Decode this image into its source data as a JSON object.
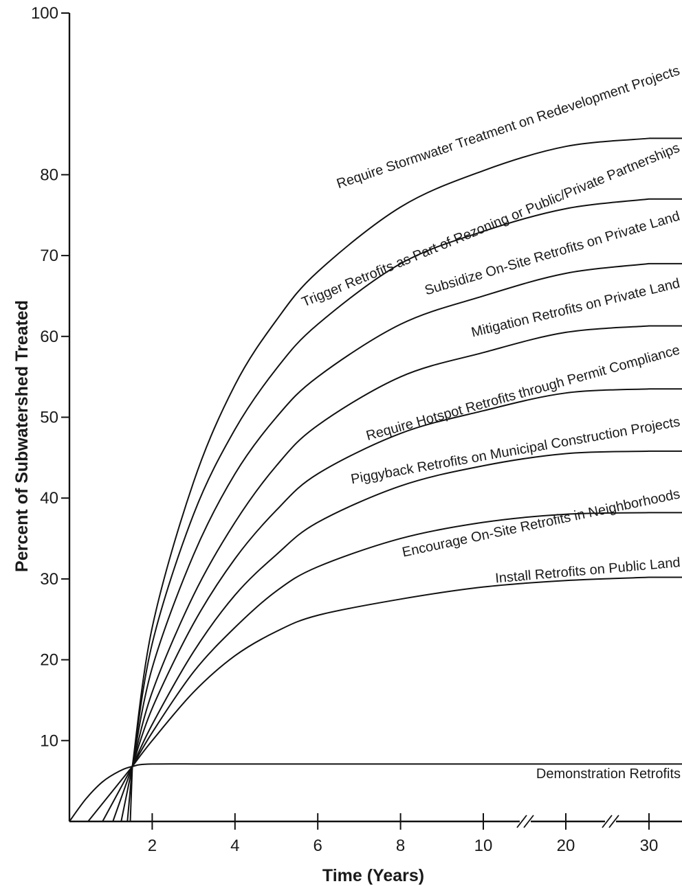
{
  "chart_data": {
    "type": "line",
    "title": "",
    "xlabel": "Time (Years)",
    "ylabel": "Percent of Subwatershed Treated",
    "ylim": [
      0,
      100
    ],
    "grid": false,
    "legend": "labels placed along curves",
    "y_ticks": [
      10,
      20,
      30,
      40,
      50,
      60,
      70,
      80,
      100
    ],
    "x_ticks": [
      2,
      4,
      6,
      8,
      10,
      20,
      30
    ],
    "x_axis_breaks": "between 10 and 20, and between 20 and 30",
    "series": [
      {
        "name": "Require Stormwater Treatment on Redevelopment Projects",
        "x": [
          1.52,
          2,
          3,
          4,
          5,
          6,
          8,
          10,
          20,
          30
        ],
        "y": [
          6.8,
          24.0,
          42.0,
          54.0,
          62.0,
          68.0,
          76.0,
          80.5,
          83.5,
          84.5
        ]
      },
      {
        "name": "Trigger Retrofits as Part of Rezoning or Public/Private Partnerships",
        "x": [
          1.52,
          2,
          3,
          4,
          5,
          6,
          8,
          10,
          20,
          30
        ],
        "y": [
          6.8,
          22.0,
          38.0,
          48.5,
          56.0,
          61.5,
          69.0,
          73.0,
          75.8,
          77.0
        ]
      },
      {
        "name": "Subsidize On-Site Retrofits on Private Land",
        "x": [
          1.52,
          2,
          3,
          4,
          5,
          6,
          8,
          10,
          20,
          30
        ],
        "y": [
          6.8,
          19.0,
          33.0,
          43.0,
          50.0,
          55.0,
          61.5,
          65.0,
          67.8,
          69.0
        ]
      },
      {
        "name": "Mitigation Retrofits on Private Land",
        "x": [
          1.52,
          2,
          3,
          4,
          5,
          6,
          8,
          10,
          20,
          30
        ],
        "y": [
          6.8,
          16.0,
          28.0,
          37.0,
          44.0,
          49.0,
          55.0,
          58.0,
          60.5,
          61.3
        ]
      },
      {
        "name": "Require Hotspot Retrofits through Permit Compliance",
        "x": [
          1.52,
          2,
          3,
          4,
          5,
          6,
          8,
          10,
          20,
          30
        ],
        "y": [
          6.8,
          14.0,
          24.5,
          32.5,
          38.5,
          43.0,
          48.0,
          50.8,
          53.0,
          53.5
        ]
      },
      {
        "name": "Piggyback Retrofits on Municipal Construction Projects",
        "x": [
          1.52,
          2,
          3,
          4,
          5,
          6,
          8,
          10,
          20,
          30
        ],
        "y": [
          6.8,
          12.0,
          21.0,
          28.0,
          33.0,
          37.0,
          41.5,
          44.0,
          45.5,
          45.8
        ]
      },
      {
        "name": "Encourage On-Site Retrofits in Neighborhoods",
        "x": [
          1.52,
          2,
          3,
          4,
          5,
          6,
          8,
          10,
          20,
          30
        ],
        "y": [
          6.8,
          11.0,
          18.5,
          24.0,
          28.5,
          31.5,
          35.0,
          37.0,
          38.0,
          38.2
        ]
      },
      {
        "name": "Install Retrofits on Public Land",
        "x": [
          1.52,
          2,
          3,
          4,
          5,
          6,
          8,
          10,
          20,
          30
        ],
        "y": [
          6.8,
          10.0,
          16.0,
          20.5,
          23.5,
          25.5,
          27.5,
          29.0,
          29.8,
          30.2
        ]
      },
      {
        "name": "Demonstration Retrofits",
        "x": [
          0,
          0.4,
          0.8,
          1.2,
          1.52,
          2,
          4,
          10,
          30
        ],
        "y": [
          0,
          2.8,
          4.9,
          6.2,
          6.8,
          7.1,
          7.1,
          7.1,
          7.1
        ]
      }
    ]
  }
}
